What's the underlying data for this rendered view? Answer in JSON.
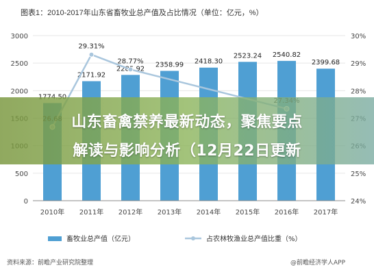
{
  "chart_data": {
    "type": "bar-line",
    "title": "图表1：2010-2017年山东省畜牧业总产值及占比情况（单位：亿元，%）",
    "categories": [
      "2010年",
      "2011年",
      "2012年",
      "2013年",
      "2014年",
      "2015年",
      "2016年",
      "2017年"
    ],
    "series": [
      {
        "name": "畜牧业总产值（亿元）",
        "type": "bar",
        "axis": "left",
        "values": [
          1774.5,
          2171.92,
          2285.92,
          2358.99,
          2418.3,
          2523.24,
          2540.82,
          2399.68
        ],
        "labels": [
          "1774.50",
          "2171.92",
          "2285.92",
          "2358.99",
          "2418.30",
          "2523.24",
          "2540.82",
          "2399.68"
        ]
      },
      {
        "name": "占农林牧渔业总产值比重（%）",
        "type": "line",
        "axis": "right",
        "values": [
          26.68,
          29.31,
          28.77,
          null,
          null,
          null,
          27.34,
          null
        ],
        "labels": [
          "26.68",
          "29.31%",
          "28.77%",
          "",
          "",
          "",
          "27.34%",
          ""
        ]
      }
    ],
    "y_left": {
      "ylim": [
        0,
        3000
      ],
      "ticks": [
        "0",
        "500",
        "1000",
        "1500",
        "2000",
        "2500",
        "3000"
      ]
    },
    "y_right": {
      "ylim": [
        24,
        30
      ],
      "ticks": [
        "24%",
        "25%",
        "26%",
        "27%",
        "28%",
        "29%",
        "30%"
      ]
    },
    "colors": {
      "bar": "#4f9fd3",
      "line": "#a9c6dd",
      "grid": "#e6e6e6"
    },
    "legend_placement": "bottom"
  },
  "banner": {
    "line1": "山东畜禽禁养最新动态，聚焦要点",
    "line2": "解读与影响分析（12月22日更新"
  },
  "footer": {
    "source": "资料来源：前瞻产业研究院整理",
    "brand": "@前瞻经济学人APP"
  }
}
